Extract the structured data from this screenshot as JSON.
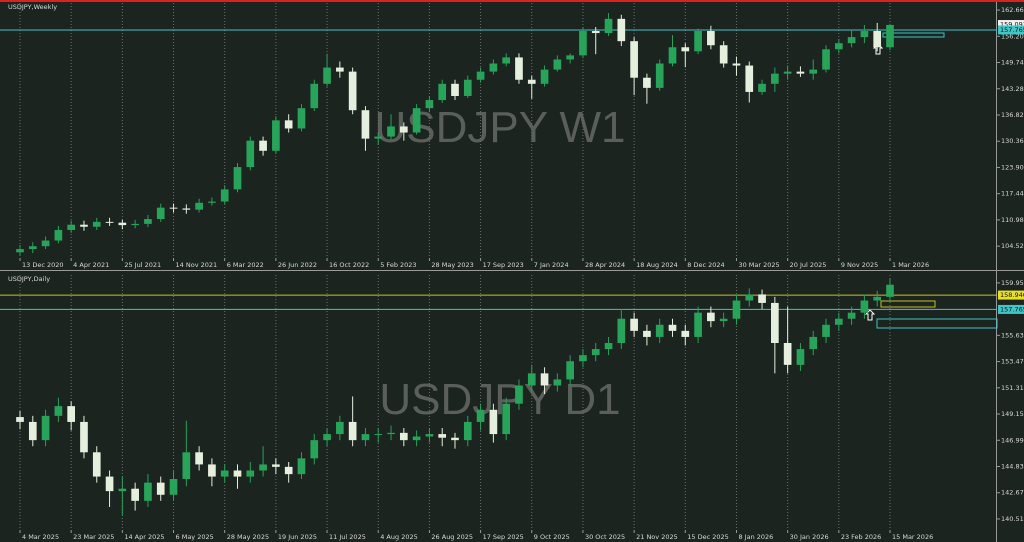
{
  "chart_data": [
    {
      "type": "candlestick",
      "title": "USDJPY,Weekly",
      "watermark": "USDJPY W1",
      "categories": [
        "13 Dec 2020",
        null,
        null,
        null,
        "4 Apr 2021",
        null,
        null,
        null,
        "25 Jul 2021",
        null,
        null,
        null,
        "14 Nov 2021",
        null,
        null,
        null,
        "6 Mar 2022",
        null,
        null,
        null,
        "26 Jun 2022",
        null,
        null,
        null,
        "16 Oct 2022",
        null,
        null,
        null,
        "5 Feb 2023",
        null,
        null,
        null,
        "28 May 2023",
        null,
        null,
        null,
        "17 Sep 2023",
        null,
        null,
        null,
        "7 Jan 2024",
        null,
        null,
        null,
        "28 Apr 2024",
        null,
        null,
        null,
        "18 Aug 2024",
        null,
        null,
        null,
        "8 Dec 2024",
        null,
        null,
        null,
        "30 Mar 2025",
        null,
        null,
        null,
        "20 Jul 2025",
        null,
        null,
        null,
        "9 Nov 2025",
        null,
        null,
        null,
        "1 Mar 2026"
      ],
      "ohlc": [
        [
          103.0,
          104.8,
          102.2,
          103.8
        ],
        [
          103.8,
          105.5,
          102.8,
          104.5
        ],
        [
          104.5,
          106.9,
          103.8,
          105.9
        ],
        [
          105.9,
          109.5,
          105.2,
          108.5
        ],
        [
          108.5,
          110.8,
          107.8,
          109.8
        ],
        [
          109.8,
          110.8,
          108.3,
          109.3
        ],
        [
          109.3,
          111.5,
          108.5,
          110.5
        ],
        [
          110.5,
          111.5,
          109.5,
          110.3
        ],
        [
          110.3,
          111.0,
          108.7,
          109.7
        ],
        [
          109.7,
          111.0,
          108.9,
          110.0
        ],
        [
          110.0,
          112.2,
          109.2,
          111.2
        ],
        [
          111.2,
          115.0,
          110.5,
          114.0
        ],
        [
          114.0,
          115.0,
          112.8,
          113.8
        ],
        [
          113.8,
          114.8,
          112.5,
          113.5
        ],
        [
          113.5,
          116.2,
          112.8,
          115.2
        ],
        [
          115.2,
          116.5,
          114.5,
          115.5
        ],
        [
          115.5,
          119.5,
          114.8,
          118.5
        ],
        [
          118.5,
          125.0,
          117.8,
          124.0
        ],
        [
          124.0,
          131.5,
          123.2,
          130.5
        ],
        [
          130.5,
          131.5,
          126.8,
          128.0
        ],
        [
          128.0,
          136.5,
          127.2,
          135.5
        ],
        [
          135.5,
          137.0,
          132.5,
          133.5
        ],
        [
          133.5,
          139.5,
          132.8,
          138.5
        ],
        [
          138.5,
          145.5,
          137.8,
          144.5
        ],
        [
          144.5,
          151.9,
          143.8,
          148.5
        ],
        [
          148.5,
          150.0,
          146.0,
          147.5
        ],
        [
          147.5,
          148.5,
          137.0,
          138.0
        ],
        [
          138.0,
          139.0,
          128.0,
          131.0
        ],
        [
          131.0,
          132.5,
          129.5,
          131.5
        ],
        [
          131.5,
          137.0,
          130.8,
          134.0
        ],
        [
          134.0,
          135.0,
          130.5,
          132.5
        ],
        [
          132.5,
          139.5,
          132.0,
          138.5
        ],
        [
          138.5,
          141.5,
          137.5,
          140.5
        ],
        [
          140.5,
          145.5,
          139.8,
          144.5
        ],
        [
          144.5,
          145.5,
          140.5,
          141.5
        ],
        [
          141.5,
          146.5,
          141.0,
          145.5
        ],
        [
          145.5,
          148.5,
          144.8,
          147.5
        ],
        [
          147.5,
          150.5,
          146.8,
          149.5
        ],
        [
          149.5,
          152.0,
          148.8,
          151.0
        ],
        [
          151.0,
          152.0,
          144.5,
          145.5
        ],
        [
          145.5,
          146.5,
          140.8,
          144.5
        ],
        [
          144.5,
          149.0,
          143.8,
          148.0
        ],
        [
          148.0,
          151.5,
          147.5,
          150.5
        ],
        [
          150.5,
          152.0,
          149.5,
          151.5
        ],
        [
          151.5,
          158.5,
          150.8,
          157.5
        ],
        [
          157.5,
          158.5,
          151.8,
          157.0
        ],
        [
          157.0,
          161.9,
          156.3,
          160.5
        ],
        [
          160.5,
          161.5,
          153.8,
          155.0
        ],
        [
          155.0,
          156.0,
          141.7,
          146.0
        ],
        [
          146.0,
          147.0,
          139.6,
          143.5
        ],
        [
          143.5,
          150.5,
          142.8,
          149.5
        ],
        [
          149.5,
          156.5,
          148.8,
          153.5
        ],
        [
          153.5,
          154.5,
          148.6,
          152.5
        ],
        [
          152.5,
          158.1,
          151.8,
          157.5
        ],
        [
          157.5,
          158.8,
          153.0,
          154.0
        ],
        [
          154.0,
          155.0,
          148.5,
          149.5
        ],
        [
          149.5,
          151.2,
          146.5,
          149.0
        ],
        [
          149.0,
          150.0,
          139.9,
          142.5
        ],
        [
          142.5,
          145.5,
          141.8,
          144.5
        ],
        [
          144.5,
          148.5,
          142.5,
          147.0
        ],
        [
          147.0,
          149.0,
          145.5,
          147.5
        ],
        [
          147.5,
          148.8,
          146.2,
          147.0
        ],
        [
          147.0,
          150.5,
          145.5,
          148.0
        ],
        [
          148.0,
          154.0,
          147.3,
          153.0
        ],
        [
          153.0,
          155.5,
          152.0,
          154.5
        ],
        [
          154.5,
          157.8,
          153.5,
          156.0
        ],
        [
          156.0,
          159.0,
          154.5,
          157.5
        ],
        [
          157.5,
          159.5,
          152.5,
          153.5
        ],
        [
          153.5,
          159.3,
          152.8,
          159.0
        ]
      ],
      "up_color": "#27a35a",
      "down_color": "#e6eedd",
      "ylim": [
        101.6,
        164.4
      ],
      "yticks": [
        {
          "value": 104.52,
          "label": "104.520"
        },
        {
          "value": 110.98,
          "label": "110.980"
        },
        {
          "value": 117.44,
          "label": "117.440"
        },
        {
          "value": 123.9,
          "label": "123.900"
        },
        {
          "value": 130.36,
          "label": "130.360"
        },
        {
          "value": 136.82,
          "label": "136.820"
        },
        {
          "value": 143.28,
          "label": "143.280"
        },
        {
          "value": 149.74,
          "label": "149.740"
        },
        {
          "value": 156.2,
          "label": "156.200"
        },
        {
          "value": 162.66,
          "label": "162.660"
        }
      ],
      "hlines": [
        {
          "value": 157.765,
          "color": "#3fc6c6"
        }
      ],
      "price_labels": [
        {
          "value": 159.093,
          "color": "#f2f2f2"
        },
        {
          "value": 157.765,
          "color": "#3fc6c6"
        }
      ],
      "grid": true
    },
    {
      "type": "candlestick",
      "title": "USDJPY,Daily",
      "watermark": "USDJPY D1",
      "categories": [
        "4 Mar 2025",
        null,
        null,
        null,
        "23 Mar 2025",
        null,
        null,
        null,
        "14 Apr 2025",
        null,
        null,
        null,
        "6 May 2025",
        null,
        null,
        null,
        "28 May 2025",
        null,
        null,
        null,
        "19 Jun 2025",
        null,
        null,
        null,
        "11 Jul 2025",
        null,
        null,
        null,
        "4 Aug 2025",
        null,
        null,
        null,
        "26 Aug 2025",
        null,
        null,
        null,
        "17 Sep 2025",
        null,
        null,
        null,
        "9 Oct 2025",
        null,
        null,
        null,
        "30 Oct 2025",
        null,
        null,
        null,
        "21 Nov 2025",
        null,
        null,
        null,
        "15 Dec 2025",
        null,
        null,
        null,
        "8 Jan 2026",
        null,
        null,
        null,
        "30 Jan 2026",
        null,
        null,
        null,
        "23 Feb 2026",
        null,
        null,
        null,
        "15 Mar 2026"
      ],
      "ohlc": [
        [
          148.9,
          149.4,
          147.9,
          148.5
        ],
        [
          148.5,
          149.0,
          146.5,
          147.0
        ],
        [
          147.0,
          149.5,
          146.5,
          149.0
        ],
        [
          149.0,
          150.5,
          148.5,
          149.8
        ],
        [
          149.8,
          150.2,
          147.8,
          148.5
        ],
        [
          148.5,
          149.0,
          145.5,
          146.0
        ],
        [
          146.0,
          146.5,
          143.5,
          144.0
        ],
        [
          144.0,
          144.5,
          141.5,
          142.8
        ],
        [
          142.8,
          144.0,
          140.8,
          143.0
        ],
        [
          143.0,
          143.5,
          141.2,
          142.0
        ],
        [
          142.0,
          144.2,
          141.5,
          143.5
        ],
        [
          143.5,
          144.0,
          142.0,
          142.5
        ],
        [
          142.5,
          144.5,
          142.0,
          143.8
        ],
        [
          143.8,
          148.6,
          143.2,
          146.0
        ],
        [
          146.0,
          146.5,
          144.5,
          145.0
        ],
        [
          145.0,
          145.5,
          143.2,
          144.0
        ],
        [
          144.0,
          145.0,
          143.5,
          144.5
        ],
        [
          144.5,
          145.0,
          143.0,
          144.0
        ],
        [
          144.0,
          145.2,
          143.5,
          144.5
        ],
        [
          144.5,
          146.5,
          144.0,
          145.0
        ],
        [
          145.0,
          145.5,
          144.2,
          144.8
        ],
        [
          144.8,
          145.2,
          143.5,
          144.2
        ],
        [
          144.2,
          146.0,
          143.8,
          145.5
        ],
        [
          145.5,
          147.5,
          145.0,
          147.0
        ],
        [
          147.0,
          148.0,
          146.5,
          147.5
        ],
        [
          147.5,
          149.0,
          147.0,
          148.5
        ],
        [
          148.5,
          150.6,
          146.5,
          147.0
        ],
        [
          147.0,
          148.0,
          146.5,
          147.5
        ],
        [
          147.5,
          148.0,
          146.8,
          147.5
        ],
        [
          147.5,
          148.2,
          147.0,
          147.6
        ],
        [
          147.6,
          148.0,
          146.5,
          147.0
        ],
        [
          147.0,
          147.8,
          146.5,
          147.3
        ],
        [
          147.3,
          148.0,
          146.8,
          147.5
        ],
        [
          147.5,
          148.0,
          146.5,
          147.2
        ],
        [
          147.2,
          147.6,
          146.3,
          147.0
        ],
        [
          147.0,
          149.0,
          146.5,
          148.5
        ],
        [
          148.5,
          150.0,
          147.8,
          149.5
        ],
        [
          149.5,
          150.0,
          146.8,
          147.5
        ],
        [
          147.5,
          150.5,
          147.0,
          150.0
        ],
        [
          150.0,
          152.0,
          149.5,
          151.5
        ],
        [
          151.5,
          153.2,
          151.0,
          152.5
        ],
        [
          152.5,
          153.0,
          150.8,
          151.5
        ],
        [
          151.5,
          152.5,
          151.0,
          152.0
        ],
        [
          152.0,
          154.0,
          151.5,
          153.5
        ],
        [
          153.5,
          154.5,
          153.0,
          154.0
        ],
        [
          154.0,
          155.0,
          153.5,
          154.5
        ],
        [
          154.5,
          155.5,
          154.0,
          155.0
        ],
        [
          155.0,
          157.8,
          154.5,
          157.0
        ],
        [
          157.0,
          157.5,
          155.5,
          156.0
        ],
        [
          156.0,
          156.5,
          154.8,
          155.5
        ],
        [
          155.5,
          157.0,
          155.0,
          156.5
        ],
        [
          156.5,
          157.0,
          155.5,
          156.0
        ],
        [
          156.0,
          156.5,
          154.8,
          155.5
        ],
        [
          155.5,
          158.0,
          155.0,
          157.5
        ],
        [
          157.5,
          158.0,
          156.3,
          156.8
        ],
        [
          156.8,
          157.5,
          156.3,
          157.0
        ],
        [
          157.0,
          159.0,
          156.5,
          158.5
        ],
        [
          158.5,
          159.5,
          158.0,
          159.0
        ],
        [
          159.0,
          159.4,
          157.8,
          158.3
        ],
        [
          158.3,
          158.8,
          152.5,
          155.0
        ],
        [
          155.0,
          158.0,
          152.5,
          153.2
        ],
        [
          153.2,
          155.0,
          152.7,
          154.5
        ],
        [
          154.5,
          156.0,
          154.0,
          155.5
        ],
        [
          155.5,
          157.0,
          155.0,
          156.5
        ],
        [
          156.5,
          157.5,
          156.0,
          157.0
        ],
        [
          157.0,
          158.0,
          156.5,
          157.5
        ],
        [
          157.5,
          159.0,
          157.0,
          158.5
        ],
        [
          158.5,
          159.3,
          158.0,
          158.8
        ],
        [
          158.8,
          160.3,
          158.3,
          159.8
        ]
      ],
      "up_color": "#27a35a",
      "down_color": "#e6eedd",
      "ylim": [
        139.6,
        160.6
      ],
      "yticks": [
        {
          "value": 140.51,
          "label": "140.510"
        },
        {
          "value": 142.67,
          "label": "142.670"
        },
        {
          "value": 144.83,
          "label": "144.830"
        },
        {
          "value": 146.99,
          "label": "146.990"
        },
        {
          "value": 149.15,
          "label": "149.150"
        },
        {
          "value": 151.31,
          "label": "151.310"
        },
        {
          "value": 153.47,
          "label": "153.470"
        },
        {
          "value": 155.63,
          "label": "155.630"
        },
        {
          "value": 159.95,
          "label": "159.950"
        }
      ],
      "hlines": [
        {
          "value": 158.946,
          "color": "#c8c020"
        },
        {
          "value": 157.765,
          "color": "#3fc6c6"
        }
      ],
      "price_labels": [
        {
          "value": 158.946,
          "color": "#e8e020"
        },
        {
          "value": 157.765,
          "color": "#3fc6c6"
        }
      ],
      "grid": true
    }
  ]
}
